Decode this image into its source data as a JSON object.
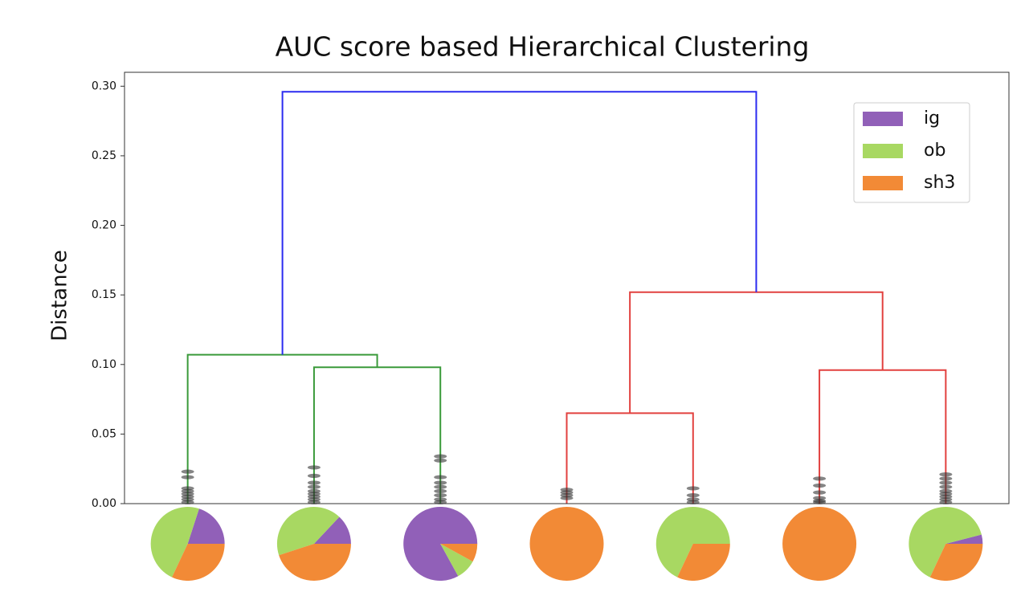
{
  "chart_data": {
    "type": "dendrogram",
    "title": "AUC score based Hierarchical Clustering",
    "ylabel": "Distance",
    "ylim": [
      0,
      0.31
    ],
    "yticks": [
      {
        "value": 0,
        "label": "0.00"
      },
      {
        "value": 0.05,
        "label": "0.05"
      },
      {
        "value": 0.1,
        "label": "0.10"
      },
      {
        "value": 0.15,
        "label": "0.15"
      },
      {
        "value": 0.2,
        "label": "0.20"
      },
      {
        "value": 0.25,
        "label": "0.25"
      },
      {
        "value": 0.3,
        "label": "0.30"
      }
    ],
    "legend": "upper right",
    "series": [
      {
        "name": "ig",
        "color": "#9160b8"
      },
      {
        "name": "ob",
        "color": "#a8d862"
      },
      {
        "name": "sh3",
        "color": "#f28a36"
      }
    ],
    "leaves": [
      {
        "values": [
          20,
          48,
          32
        ],
        "markers": [
          0.023,
          0.019,
          0.011,
          0.009,
          0.007,
          0.005,
          0.003,
          0.001
        ]
      },
      {
        "values": [
          13,
          42,
          45
        ],
        "markers": [
          0.026,
          0.02,
          0.015,
          0.012,
          0.009,
          0.007,
          0.005,
          0.003,
          0.001
        ]
      },
      {
        "values": [
          83,
          9,
          8
        ],
        "markers": [
          0.034,
          0.031,
          0.019,
          0.015,
          0.012,
          0.009,
          0.006,
          0.003,
          0.001
        ]
      },
      {
        "values": [
          0,
          0,
          100
        ],
        "markers": [
          0.01,
          0.008,
          0.006,
          0.004
        ]
      },
      {
        "values": [
          0,
          68,
          32
        ],
        "markers": [
          0.011,
          0.006,
          0.003,
          0.001
        ]
      },
      {
        "values": [
          0,
          0,
          100
        ],
        "markers": [
          0.018,
          0.013,
          0.008,
          0.004,
          0.002,
          0.001
        ]
      },
      {
        "values": [
          4,
          64,
          32
        ],
        "markers": [
          0.021,
          0.018,
          0.015,
          0.012,
          0.009,
          0.007,
          0.005,
          0.003,
          0.001
        ]
      }
    ],
    "links": [
      {
        "children": [
          1,
          2
        ],
        "height": 0.098,
        "color": "#3a9a3a"
      },
      {
        "children": [
          0,
          7
        ],
        "height": 0.107,
        "color": "#3a9a3a"
      },
      {
        "children": [
          3,
          4
        ],
        "height": 0.065,
        "color": "#e2413f"
      },
      {
        "children": [
          5,
          6
        ],
        "height": 0.096,
        "color": "#e2413f"
      },
      {
        "children": [
          9,
          10
        ],
        "height": 0.152,
        "color": "#e2413f"
      },
      {
        "children": [
          8,
          11
        ],
        "height": 0.296,
        "color": "#2b2bf0"
      }
    ]
  }
}
